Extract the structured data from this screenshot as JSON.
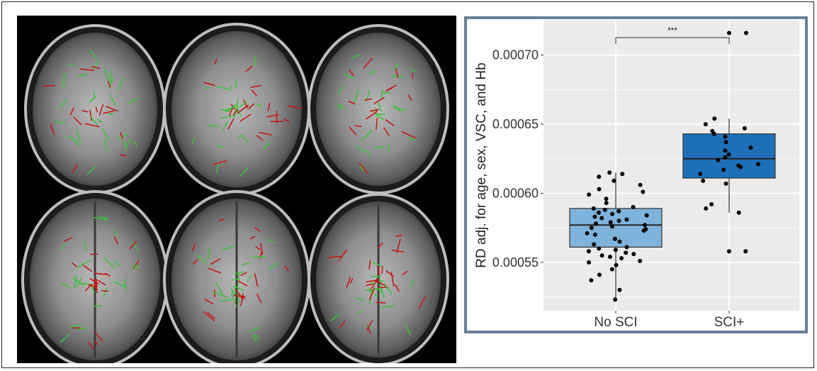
{
  "chart_data": {
    "type": "boxplot",
    "ylabel": "RD adj. for age, sex, VSC, and Hb",
    "xlabel": "",
    "categories": [
      "No SCI",
      "SCI+"
    ],
    "ylim": [
      0.000515,
      0.000725
    ],
    "y_ticks": [
      0.00055,
      0.0006,
      0.00065,
      0.0007
    ],
    "y_tick_labels": [
      "0.00055",
      "0.00060",
      "0.00065",
      "0.00070"
    ],
    "grid": true,
    "significance": {
      "between": [
        "No SCI",
        "SCI+"
      ],
      "label": "***"
    },
    "series": [
      {
        "category": "No SCI",
        "color": "#7fb3db",
        "box": {
          "lower_whisker": 0.000523,
          "q1": 0.000561,
          "median": 0.000577,
          "q3": 0.000589,
          "upper_whisker": 0.000615
        },
        "points": [
          0.000523,
          0.00053,
          0.000537,
          0.000541,
          0.000545,
          0.000548,
          0.00055,
          0.000551,
          0.000553,
          0.000554,
          0.000555,
          0.000556,
          0.000557,
          0.000558,
          0.000559,
          0.00056,
          0.000561,
          0.000563,
          0.000565,
          0.000567,
          0.00057,
          0.000571,
          0.000573,
          0.000574,
          0.000575,
          0.000576,
          0.000577,
          0.000578,
          0.000579,
          0.00058,
          0.000581,
          0.000582,
          0.000583,
          0.000584,
          0.000585,
          0.000586,
          0.000587,
          0.000588,
          0.000589,
          0.00059,
          0.000593,
          0.000596,
          0.000599,
          0.000601,
          0.000603,
          0.000606,
          0.000609,
          0.000612,
          0.000614,
          0.000615
        ]
      },
      {
        "category": "SCI+",
        "color": "#1f6fb8",
        "box": {
          "lower_whisker": 0.000586,
          "q1": 0.000611,
          "median": 0.000625,
          "q3": 0.000643,
          "upper_whisker": 0.000654
        },
        "outliers": [
          0.000558,
          0.000716
        ],
        "points": [
          0.000558,
          0.000586,
          0.000589,
          0.000592,
          0.000607,
          0.000609,
          0.000614,
          0.000617,
          0.000619,
          0.00062,
          0.000621,
          0.000624,
          0.000626,
          0.000628,
          0.000631,
          0.000633,
          0.000637,
          0.000641,
          0.000643,
          0.000645,
          0.000647,
          0.00065,
          0.000654,
          0.000716
        ]
      }
    ]
  }
}
